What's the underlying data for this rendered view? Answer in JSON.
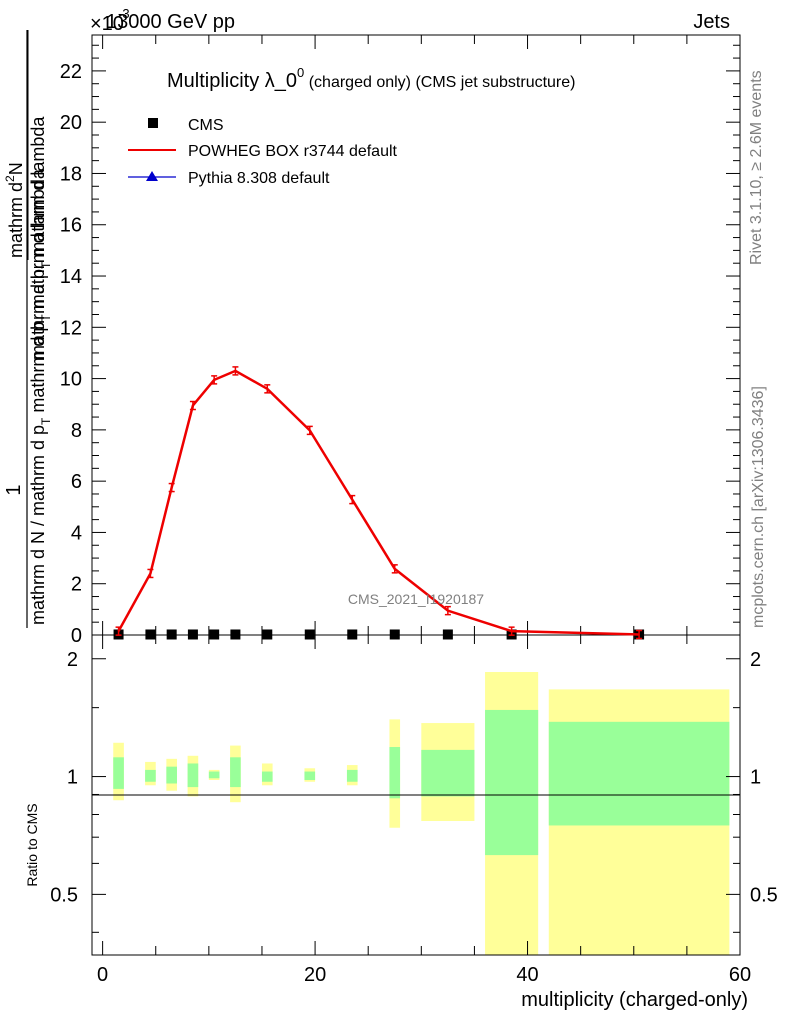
{
  "header": {
    "energy": "13000 GeV pp",
    "process": "Jets",
    "exponent_label": "×10",
    "exponent": "-3"
  },
  "side_labels": {
    "rivet": "Rivet 3.1.10, ≥ 2.6M events",
    "mcplots": "mcplots.cern.ch [arXiv:1306.3436]"
  },
  "watermark": "CMS_2021_I1920187",
  "main_title": {
    "lead": "Multiplicity λ_0",
    "sup": "0",
    "tail": " (charged only) (CMS jet substructure)"
  },
  "y_axis_label": {
    "num": "1",
    "den": "mathrm d N / mathrm d p",
    "den_sub": "T",
    "den2": " mathrm d p",
    "den2_sub": "T",
    "den3": " mathrm d lambda",
    "num2": "mathrm d",
    "num2_sup": "2",
    "num2_tail": "N",
    "num3": "mathrm d p",
    "num3_sub": "T",
    "num3_tail": " mathrm d lambda"
  },
  "ratio_ylabel": "Ratio to CMS",
  "xlabel": "multiplicity (charged-only)",
  "legend": [
    {
      "name": "CMS",
      "color": "#000000",
      "marker": "square"
    },
    {
      "name": "POWHEG BOX r3744 default",
      "color": "#ee0000",
      "marker": "line"
    },
    {
      "name": "Pythia 8.308 default",
      "color": "#0000cc",
      "marker": "triangle"
    }
  ],
  "chart_data": {
    "type": "line",
    "x_range": [
      -1,
      60
    ],
    "y_range": [
      0,
      23.4
    ],
    "y_scale_exponent": -3,
    "y_ticks": [
      0,
      2,
      4,
      6,
      8,
      10,
      12,
      14,
      16,
      18,
      20,
      22
    ],
    "x_ticks": [
      0,
      20,
      40,
      60
    ],
    "bins": [
      [
        1,
        2
      ],
      [
        4,
        5
      ],
      [
        6,
        7
      ],
      [
        8,
        9
      ],
      [
        10,
        11
      ],
      [
        12,
        13
      ],
      [
        15,
        16
      ],
      [
        19,
        20
      ],
      [
        23,
        24
      ],
      [
        27,
        28
      ],
      [
        30,
        35
      ],
      [
        36,
        41
      ],
      [
        42,
        59
      ]
    ],
    "series": [
      {
        "name": "CMS",
        "x": [
          1.5,
          4.5,
          6.5,
          8.5,
          10.5,
          12.5,
          15.5,
          19.5,
          23.5,
          27.5,
          32.5,
          38.5,
          50.5
        ],
        "values": [
          0.02,
          0.02,
          0.02,
          0.02,
          0.02,
          0.02,
          0.02,
          0.02,
          0.02,
          0.02,
          0.02,
          0.02,
          0.02
        ]
      },
      {
        "name": "POWHEG BOX r3744 default",
        "x": [
          1.5,
          4.5,
          6.5,
          8.5,
          10.5,
          12.5,
          15.5,
          19.5,
          23.5,
          27.5,
          32.5,
          38.5,
          50.5
        ],
        "values": [
          0.15,
          2.4,
          5.75,
          8.95,
          9.95,
          10.3,
          9.6,
          7.98,
          5.28,
          2.58,
          0.95,
          0.15,
          0.02
        ]
      }
    ],
    "ratio": {
      "y_range": [
        0.35,
        2.3
      ],
      "y_ticks": [
        0.5,
        1,
        2
      ],
      "outer_band": [
        [
          0.87,
          1.22
        ],
        [
          0.95,
          1.09
        ],
        [
          0.92,
          1.11
        ],
        [
          0.89,
          1.13
        ],
        [
          0.98,
          1.04
        ],
        [
          0.86,
          1.2
        ],
        [
          0.95,
          1.08
        ],
        [
          0.97,
          1.05
        ],
        [
          0.95,
          1.07
        ],
        [
          0.74,
          1.4
        ],
        [
          0.77,
          1.37
        ],
        [
          0.35,
          1.85
        ],
        [
          0.35,
          1.67
        ]
      ],
      "inner_band": [
        [
          0.93,
          1.12
        ],
        [
          0.97,
          1.04
        ],
        [
          0.96,
          1.06
        ],
        [
          0.94,
          1.08
        ],
        [
          0.99,
          1.03
        ],
        [
          0.94,
          1.12
        ],
        [
          0.97,
          1.03
        ],
        [
          0.98,
          1.03
        ],
        [
          0.97,
          1.04
        ],
        [
          0.88,
          1.19
        ],
        [
          0.89,
          1.17
        ],
        [
          0.63,
          1.48
        ],
        [
          0.75,
          1.38
        ]
      ]
    }
  },
  "colors": {
    "powheg": "#ee0000",
    "pythia": "#0000cc",
    "band_outer": "#ffff99",
    "band_inner": "#99ff99"
  }
}
